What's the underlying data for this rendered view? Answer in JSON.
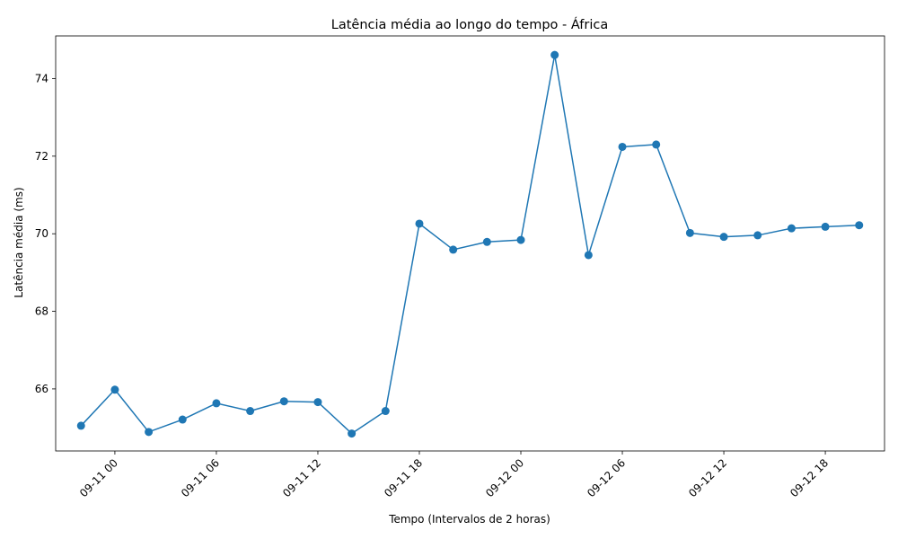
{
  "chart_data": {
    "type": "line",
    "title": "Latência média ao longo do tempo - África",
    "xlabel": "Tempo (Intervalos de 2 horas)",
    "ylabel": "Latência média (ms)",
    "grid": false,
    "legend": "none",
    "x_tick_labels": [
      "09-11 00",
      "09-11 06",
      "09-11 12",
      "09-11 18",
      "09-12 00",
      "09-12 06",
      "09-12 12",
      "09-12 18"
    ],
    "y_tick_labels": [
      "66",
      "68",
      "70",
      "72",
      "74"
    ],
    "xlim": [
      "2023-09-10 20:30",
      "2023-09-12 21:30"
    ],
    "ylim": [
      64.4,
      75.1
    ],
    "series": [
      {
        "color": "#1f77b4",
        "marker": "circle",
        "points": [
          {
            "x": "2023-09-10 22:00",
            "y": 65.05
          },
          {
            "x": "2023-09-11 00:00",
            "y": 65.98
          },
          {
            "x": "2023-09-11 02:00",
            "y": 64.89
          },
          {
            "x": "2023-09-11 04:00",
            "y": 65.21
          },
          {
            "x": "2023-09-11 06:00",
            "y": 65.63
          },
          {
            "x": "2023-09-11 08:00",
            "y": 65.43
          },
          {
            "x": "2023-09-11 10:00",
            "y": 65.68
          },
          {
            "x": "2023-09-11 12:00",
            "y": 65.66
          },
          {
            "x": "2023-09-11 14:00",
            "y": 64.85
          },
          {
            "x": "2023-09-11 16:00",
            "y": 65.43
          },
          {
            "x": "2023-09-11 18:00",
            "y": 70.26
          },
          {
            "x": "2023-09-11 20:00",
            "y": 69.59
          },
          {
            "x": "2023-09-11 22:00",
            "y": 69.79
          },
          {
            "x": "2023-09-12 00:00",
            "y": 69.84
          },
          {
            "x": "2023-09-12 02:00",
            "y": 74.61
          },
          {
            "x": "2023-09-12 04:00",
            "y": 69.45
          },
          {
            "x": "2023-09-12 06:00",
            "y": 72.24
          },
          {
            "x": "2023-09-12 08:00",
            "y": 72.3
          },
          {
            "x": "2023-09-12 10:00",
            "y": 70.02
          },
          {
            "x": "2023-09-12 12:00",
            "y": 69.92
          },
          {
            "x": "2023-09-12 14:00",
            "y": 69.96
          },
          {
            "x": "2023-09-12 16:00",
            "y": 70.14
          },
          {
            "x": "2023-09-12 18:00",
            "y": 70.18
          },
          {
            "x": "2023-09-12 20:00",
            "y": 70.22
          }
        ]
      }
    ]
  }
}
